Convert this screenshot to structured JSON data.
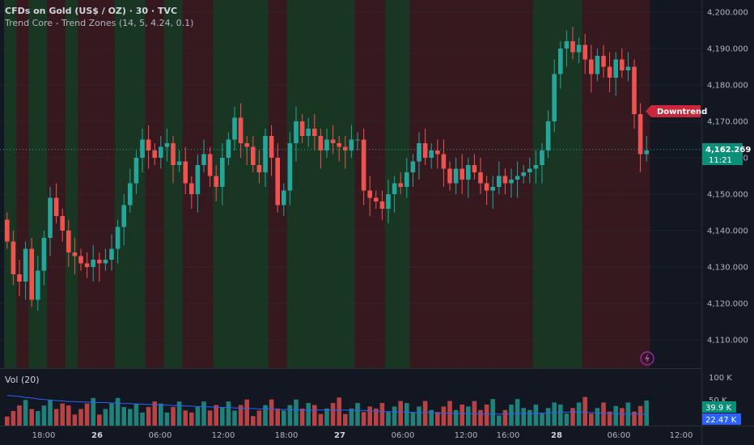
{
  "legend": {
    "title": "CFDs on Gold (US$ / OZ) · 30 · TVC",
    "indicator": "Trend Core - Trend Zones",
    "indicator_params": "(14, 5, 4.24, 0.1)"
  },
  "volume_label": "Vol (20)",
  "trend_badge": "Downtrend",
  "price_badge": {
    "price": "4,162.269",
    "countdown": "11:21"
  },
  "volume_badges": {
    "vol_high": "39.9 K",
    "vol_low": "22.47 K",
    "axis_max": "100 K",
    "axis_mid": "50 K"
  },
  "colors": {
    "up": "#26a69a",
    "down": "#ef5350",
    "zone_up": "#1b3a24",
    "zone_down": "#3b1a1f",
    "ma": "#2962ff",
    "bg": "#131722"
  },
  "chart_data": {
    "type": "candlestick",
    "y_axis_ticks": [
      "4,200.000",
      "4,190.000",
      "4,180.000",
      "4,170.000",
      "4,160.000",
      "4,150.000",
      "4,140.000",
      "4,130.000",
      "4,120.000",
      "4,110.000"
    ],
    "x_axis_ticks": [
      "18:00",
      "26",
      "06:00",
      "12:00",
      "18:00",
      "27",
      "06:00",
      "12:00",
      "16:00",
      "28",
      "06:00",
      "12:00"
    ],
    "ylim": [
      4103,
      4203
    ],
    "current_price": 4162.269,
    "closes": [
      4137,
      4128,
      4126,
      4135,
      4121,
      4129,
      4138,
      4149,
      4144,
      4140,
      4134,
      4133,
      4131,
      4130,
      4132,
      4131,
      4132,
      4135,
      4141,
      4147,
      4153,
      4160,
      4165,
      4162,
      4160,
      4163,
      4164,
      4158,
      4159,
      4153,
      4150,
      4158,
      4161,
      4155,
      4152,
      4160,
      4165,
      4171,
      4164,
      4163,
      4158,
      4156,
      4166,
      4160,
      4147,
      4151,
      4164,
      4170,
      4166,
      4168,
      4166,
      4162,
      4165,
      4164,
      4163,
      4162,
      4165,
      4165,
      4151,
      4149,
      4148,
      4146,
      4150,
      4153,
      4152,
      4156,
      4159,
      4164,
      4160,
      4162,
      4161,
      4157,
      4153,
      4157,
      4154,
      4158,
      4156,
      4153,
      4151,
      4152,
      4155,
      4153,
      4154,
      4155,
      4156,
      4157,
      4158,
      4162,
      4170,
      4183,
      4190,
      4192,
      4189,
      4191,
      4187,
      4183,
      4188,
      4185,
      4182,
      4187,
      4184,
      4185,
      4172,
      4161,
      4162
    ],
    "volume_ma": [
      60,
      59,
      58,
      56,
      55,
      53,
      52,
      51,
      50,
      49,
      48,
      48,
      47,
      47,
      46,
      46,
      46,
      45,
      45,
      44,
      44,
      43,
      43,
      42,
      42,
      41,
      41,
      40,
      40,
      39,
      39,
      38,
      38,
      37,
      37,
      36,
      36,
      35,
      35,
      34,
      34,
      33,
      33,
      33,
      32,
      32,
      32,
      31,
      31,
      31,
      31,
      31,
      31,
      31,
      31,
      31,
      30,
      30,
      30,
      29,
      29,
      28,
      28,
      27,
      27,
      27,
      26,
      26,
      26,
      26,
      25,
      25,
      25,
      24,
      24,
      24,
      24,
      23,
      23,
      23,
      23,
      23,
      23,
      24,
      24,
      24,
      24,
      25,
      25,
      26,
      26,
      27,
      27,
      27,
      26,
      26,
      25,
      25,
      24,
      24,
      23,
      23,
      23,
      23,
      22
    ]
  }
}
